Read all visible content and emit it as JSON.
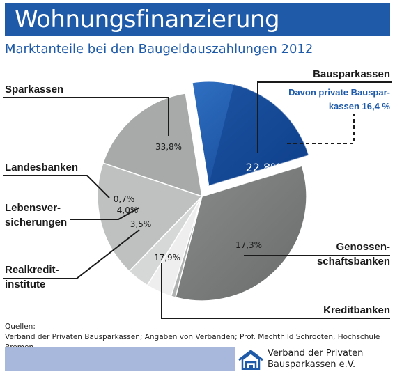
{
  "title": "Wohnungsfinanzierung",
  "subtitle": "Marktanteile bei den Baugeldauszahlungen 2012",
  "chart_data": {
    "type": "pie",
    "title": "Wohnungsfinanzierung",
    "subtitle": "Marktanteile bei den Baugeldauszahlungen 2012",
    "slices": [
      {
        "name": "Bausparkassen",
        "value": 22.8,
        "value_label": "22,8%",
        "color": "#1e5aa8",
        "exploded": true
      },
      {
        "name": "Genossen-schaftsbanken",
        "value": 17.3,
        "value_label": "17,3%",
        "color": "#a8aaaa"
      },
      {
        "name": "Kreditbanken",
        "value": 17.9,
        "value_label": "17,9%",
        "color": "#bfc1c1"
      },
      {
        "name": "Realkredit-institute",
        "value": 3.5,
        "value_label": "3,5%",
        "color": "#d6d7d7"
      },
      {
        "name": "Lebensver-sicherungen",
        "value": 4.0,
        "value_label": "4,0%",
        "color": "#eeeeee"
      },
      {
        "name": "Landesbanken",
        "value": 0.7,
        "value_label": "0,7%",
        "color": "#b0b2b2"
      },
      {
        "name": "Sparkassen",
        "value": 33.8,
        "value_label": "33,8%",
        "color": "#7d7f7f"
      }
    ],
    "annotation": {
      "lines": [
        "Davon private Bauspar-",
        "kassen 16,4 %"
      ],
      "value": 16.4
    }
  },
  "labels": {
    "sparkassen": "Sparkassen",
    "landesbanken": "Landesbanken",
    "lebens_1": "Lebensver-",
    "lebens_2": "sicherungen",
    "realkredit_1": "Realkredit-",
    "realkredit_2": "institute",
    "bausparkassen": "Bausparkassen",
    "genossen_1": "Genossen-",
    "genossen_2": "schaftsbanken",
    "kreditbanken": "Kreditbanken",
    "annotation_1": "Davon private Bauspar-",
    "annotation_2": "kassen 16,4 %"
  },
  "values": {
    "sparkassen": "33,8%",
    "landesbanken": "0,7%",
    "lebens": "4,0%",
    "realkredit": "3,5%",
    "bausparkassen": "22,8%",
    "genossen": "17,3%",
    "kreditbanken": "17,9%"
  },
  "sources": {
    "heading": "Quellen:",
    "text": "Verband der Privaten Bausparkassen; Angaben von Verbänden; Prof. Mechthild Schrooten, Hochschule Bremen"
  },
  "footer": {
    "logo_line1": "Verband der Privaten",
    "logo_line2": "Bausparkassen e.V."
  },
  "colors": {
    "brand_blue": "#1e5aa8",
    "footer_bar": "#a7b8dc",
    "private_bauspar_blue": "#0f3f8a"
  }
}
